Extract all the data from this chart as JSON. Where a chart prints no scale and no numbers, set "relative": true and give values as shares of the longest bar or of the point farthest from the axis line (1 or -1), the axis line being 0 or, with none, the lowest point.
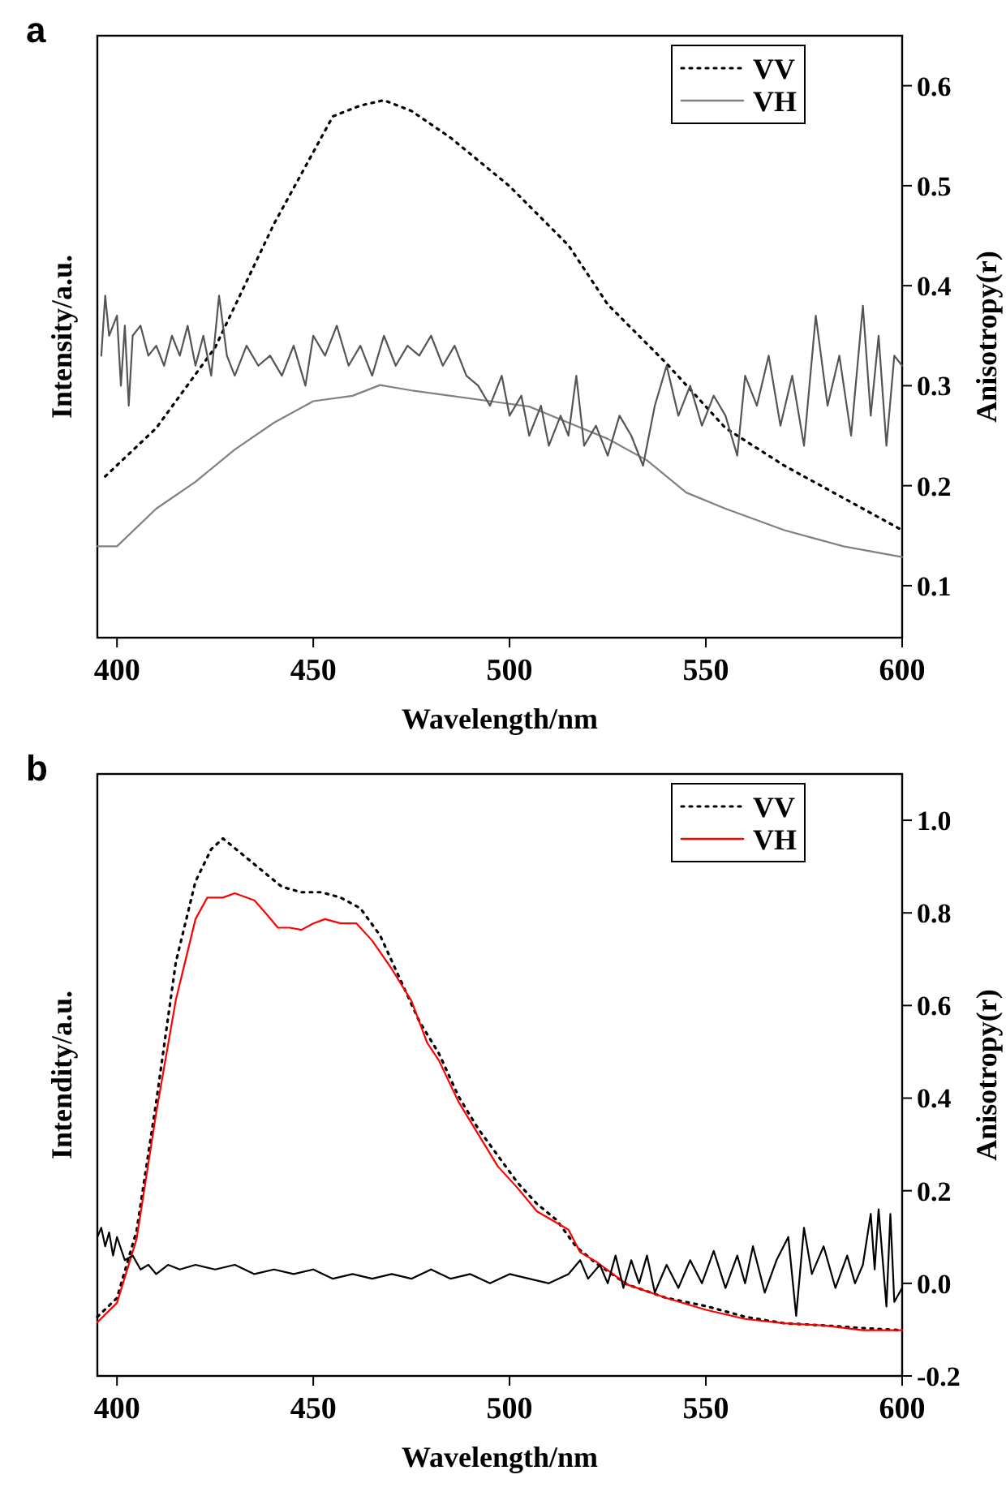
{
  "chart_data": [
    {
      "type": "line",
      "title": "a",
      "xlabel": "Wavelength/nm",
      "ylabel": "Intensity/a.u.",
      "y2label": "Anisotropy(r)",
      "relative": true,
      "xlim": [
        395,
        600
      ],
      "xticks": [
        400,
        450,
        500,
        550,
        600
      ],
      "y2lim": [
        0.048,
        0.65
      ],
      "y2ticks": [
        0.1,
        0.2,
        0.3,
        0.4,
        0.5,
        0.6
      ],
      "legend": "top right",
      "grid": false,
      "series": [
        {
          "name": "VV",
          "color": "#000000",
          "line_style": "dotted",
          "x": [
            397,
            410,
            425,
            440,
            455,
            462,
            468,
            475,
            485,
            500,
            515,
            525,
            540,
            555,
            570,
            585,
            600
          ],
          "values": [
            0.3,
            0.39,
            0.54,
            0.77,
            0.97,
            0.99,
            1,
            0.98,
            0.93,
            0.84,
            0.73,
            0.62,
            0.51,
            0.39,
            0.32,
            0.26,
            0.2
          ]
        },
        {
          "name": "VH",
          "color": "#808080",
          "line_style": "solid",
          "x": [
            395,
            400,
            410,
            420,
            430,
            440,
            450,
            460,
            467,
            475,
            485,
            495,
            505,
            515,
            525,
            535,
            545,
            555,
            570,
            585,
            600
          ],
          "values": [
            0.17,
            0.17,
            0.24,
            0.29,
            0.35,
            0.4,
            0.44,
            0.45,
            0.47,
            0.46,
            0.45,
            0.44,
            0.43,
            0.4,
            0.37,
            0.33,
            0.27,
            0.24,
            0.2,
            0.17,
            0.15
          ]
        },
        {
          "color": "#555555",
          "line_style": "solid",
          "axis": "y2",
          "x": [
            396,
            397,
            398,
            400,
            401,
            402,
            403,
            404,
            406,
            408,
            410,
            412,
            414,
            416,
            418,
            420,
            422,
            424,
            426,
            428,
            430,
            433,
            436,
            439,
            442,
            445,
            448,
            450,
            453,
            456,
            459,
            462,
            465,
            468,
            471,
            474,
            477,
            480,
            483,
            486,
            489,
            492,
            495,
            498,
            500,
            503,
            505,
            508,
            510,
            513,
            515,
            517,
            519,
            522,
            525,
            528,
            531,
            534,
            537,
            540,
            543,
            546,
            549,
            552,
            555,
            558,
            560,
            563,
            566,
            569,
            572,
            575,
            578,
            581,
            584,
            587,
            590,
            592,
            594,
            596,
            598,
            600
          ],
          "values": [
            0.33,
            0.39,
            0.35,
            0.37,
            0.3,
            0.36,
            0.28,
            0.35,
            0.36,
            0.33,
            0.34,
            0.32,
            0.35,
            0.33,
            0.36,
            0.32,
            0.35,
            0.31,
            0.39,
            0.33,
            0.31,
            0.34,
            0.32,
            0.33,
            0.31,
            0.34,
            0.3,
            0.35,
            0.33,
            0.36,
            0.32,
            0.34,
            0.31,
            0.35,
            0.32,
            0.34,
            0.33,
            0.35,
            0.32,
            0.34,
            0.31,
            0.3,
            0.28,
            0.31,
            0.27,
            0.29,
            0.25,
            0.28,
            0.24,
            0.27,
            0.25,
            0.31,
            0.24,
            0.26,
            0.23,
            0.27,
            0.25,
            0.22,
            0.28,
            0.32,
            0.27,
            0.3,
            0.26,
            0.29,
            0.27,
            0.23,
            0.31,
            0.28,
            0.33,
            0.26,
            0.31,
            0.24,
            0.37,
            0.28,
            0.33,
            0.25,
            0.38,
            0.27,
            0.35,
            0.24,
            0.33,
            0.32
          ]
        }
      ]
    },
    {
      "type": "line",
      "title": "b",
      "xlabel": "Wavelength/nm",
      "ylabel": "Intendity/a.u.",
      "y2label": "Anisotropy(r)",
      "relative": true,
      "xlim": [
        395,
        600
      ],
      "xticks": [
        400,
        450,
        500,
        550,
        600
      ],
      "y2lim": [
        -0.2,
        1.1
      ],
      "y2ticks": [
        -0.2,
        {
          "value": 0,
          "label": "0.0"
        },
        0.2,
        0.4,
        0.6,
        0.8,
        {
          "value": 1,
          "label": "1.0"
        }
      ],
      "legend": "top right",
      "grid": false,
      "series": [
        {
          "name": "VV",
          "color": "#000000",
          "line_style": "dotted",
          "x": [
            395,
            400,
            405,
            410,
            415,
            420,
            424,
            427,
            432,
            437,
            442,
            447,
            452,
            457,
            462,
            467,
            472,
            477,
            482,
            487,
            492,
            497,
            502,
            507,
            512,
            517,
            522,
            530,
            540,
            550,
            560,
            570,
            580,
            590,
            600
          ],
          "values": [
            0.11,
            0.145,
            0.27,
            0.51,
            0.77,
            0.92,
            0.98,
            1,
            0.97,
            0.94,
            0.91,
            0.9,
            0.9,
            0.89,
            0.87,
            0.82,
            0.74,
            0.66,
            0.6,
            0.52,
            0.46,
            0.41,
            0.36,
            0.32,
            0.29,
            0.24,
            0.21,
            0.17,
            0.145,
            0.13,
            0.11,
            0.098,
            0.094,
            0.089,
            0.085
          ]
        },
        {
          "name": "VH",
          "color": "#ff0000",
          "line_style": "solid",
          "x": [
            395,
            400,
            405,
            410,
            415,
            420,
            423,
            427,
            430,
            435,
            438,
            441,
            444,
            447,
            450,
            453,
            457,
            461,
            465,
            470,
            475,
            479,
            482,
            487,
            492,
            497,
            502,
            507,
            512,
            515,
            518,
            522,
            530,
            540,
            550,
            560,
            570,
            580,
            590,
            600
          ],
          "values": [
            0.1,
            0.136,
            0.255,
            0.49,
            0.7,
            0.85,
            0.89,
            0.89,
            0.898,
            0.885,
            0.86,
            0.834,
            0.834,
            0.83,
            0.842,
            0.85,
            0.842,
            0.842,
            0.81,
            0.757,
            0.698,
            0.62,
            0.587,
            0.51,
            0.45,
            0.39,
            0.35,
            0.306,
            0.285,
            0.272,
            0.23,
            0.213,
            0.17,
            0.145,
            0.123,
            0.106,
            0.098,
            0.094,
            0.085,
            0.085
          ]
        },
        {
          "color": "#000000",
          "line_style": "solid",
          "axis": "y2",
          "x": [
            395,
            396,
            397,
            398,
            399,
            400,
            402,
            404,
            406,
            408,
            410,
            413,
            416,
            420,
            425,
            430,
            435,
            440,
            445,
            450,
            455,
            460,
            465,
            470,
            475,
            480,
            485,
            490,
            495,
            500,
            505,
            510,
            515,
            518,
            520,
            523,
            525,
            527,
            529,
            531,
            533,
            535,
            537,
            540,
            543,
            546,
            549,
            552,
            555,
            558,
            560,
            562,
            565,
            568,
            571,
            573,
            575,
            577,
            580,
            583,
            586,
            588,
            590,
            592,
            593,
            594,
            596,
            597,
            598,
            600
          ],
          "values": [
            0.1,
            0.12,
            0.08,
            0.11,
            0.06,
            0.1,
            0.05,
            0.06,
            0.03,
            0.04,
            0.02,
            0.04,
            0.03,
            0.04,
            0.03,
            0.04,
            0.02,
            0.03,
            0.02,
            0.03,
            0.01,
            0.02,
            0.01,
            0.02,
            0.01,
            0.03,
            0.01,
            0.02,
            0.0,
            0.02,
            0.01,
            0.0,
            0.02,
            0.05,
            0.01,
            0.04,
            0.0,
            0.06,
            -0.01,
            0.05,
            0.0,
            0.06,
            -0.02,
            0.04,
            -0.01,
            0.05,
            0.0,
            0.07,
            -0.01,
            0.06,
            0.0,
            0.08,
            -0.02,
            0.05,
            0.1,
            -0.07,
            0.12,
            0.02,
            0.08,
            -0.01,
            0.06,
            0.0,
            0.04,
            0.15,
            0.03,
            0.16,
            -0.05,
            0.15,
            -0.04,
            -0.01
          ]
        }
      ]
    }
  ]
}
